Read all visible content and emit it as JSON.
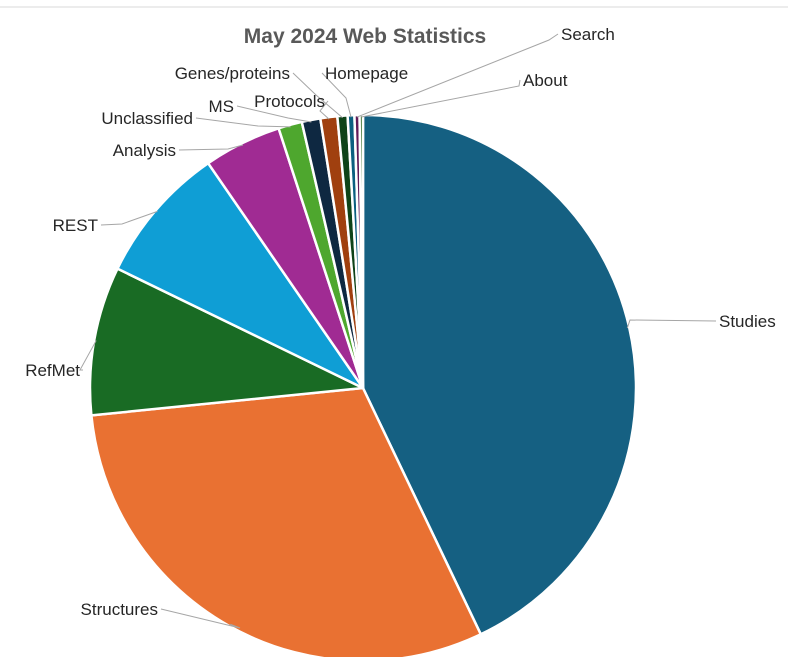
{
  "chart_data": {
    "type": "pie",
    "title": "May 2024 Web Statistics",
    "legend": "none",
    "slices": [
      {
        "label": "Studies",
        "value": 42.9,
        "color": "#156082"
      },
      {
        "label": "Structures",
        "value": 30.5,
        "color": "#E97132"
      },
      {
        "label": "RefMet",
        "value": 8.8,
        "color": "#196B24"
      },
      {
        "label": "REST",
        "value": 8.2,
        "color": "#0F9ED5"
      },
      {
        "label": "Analysis",
        "value": 4.6,
        "color": "#A02B93"
      },
      {
        "label": "Unclassified",
        "value": 1.4,
        "color": "#4EA72E"
      },
      {
        "label": "MS",
        "value": 1.1,
        "color": "#0E2841"
      },
      {
        "label": "Protocols",
        "value": 1.0,
        "color": "#A0400F"
      },
      {
        "label": "Genes/proteins",
        "value": 0.6,
        "color": "#0E4318"
      },
      {
        "label": "Homepage",
        "value": 0.4,
        "color": "#0C5F80"
      },
      {
        "label": "Search",
        "value": 0.3,
        "color": "#601A58"
      },
      {
        "label": "About",
        "value": 0.2,
        "color": "#2F641C"
      }
    ]
  }
}
